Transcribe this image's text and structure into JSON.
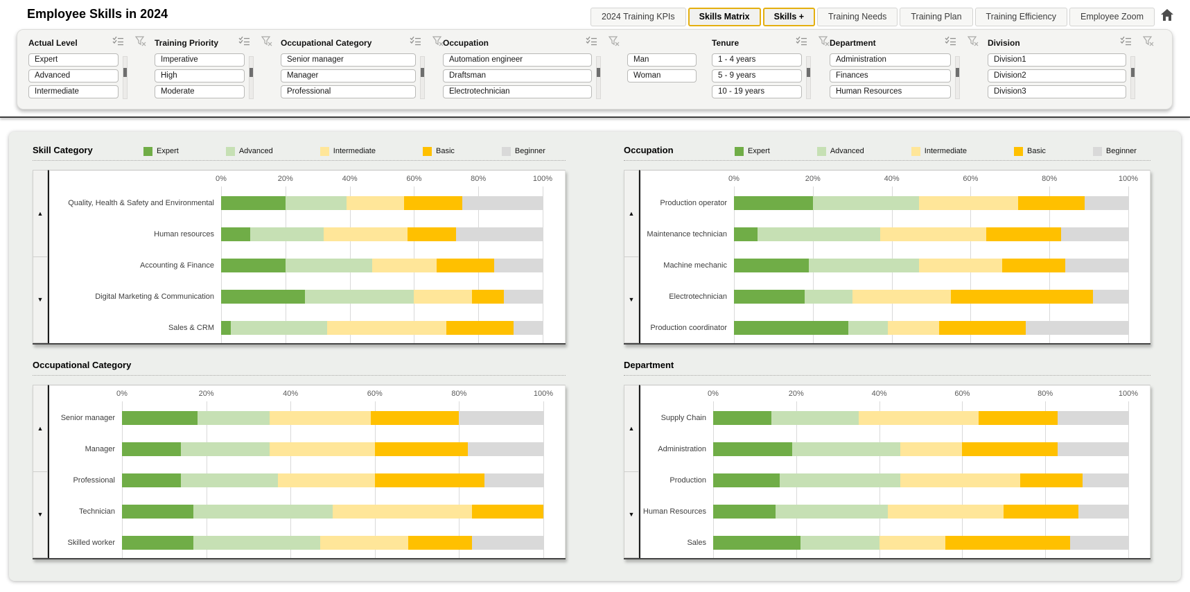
{
  "header": {
    "title": "Employee Skills in 2024",
    "tabs": [
      {
        "label": "2024 Training KPIs",
        "active": false
      },
      {
        "label": "Skills Matrix",
        "active": true
      },
      {
        "label": "Skills +",
        "active": true
      },
      {
        "label": "Training Needs",
        "active": false
      },
      {
        "label": "Training Plan",
        "active": false
      },
      {
        "label": "Training Efficiency",
        "active": false
      },
      {
        "label": "Employee Zoom",
        "active": false
      }
    ],
    "home_icon": "home-icon"
  },
  "filter_bar": {
    "slicers": [
      {
        "id": "actual-level",
        "title": "Actual Level",
        "items": [
          "Expert",
          "Advanced",
          "Intermediate"
        ]
      },
      {
        "id": "training-priority",
        "title": "Training Priority",
        "items": [
          "Imperative",
          "High",
          "Moderate"
        ]
      },
      {
        "id": "occupational-category",
        "title": "Occupational Category",
        "items": [
          "Senior manager",
          "Manager",
          "Professional"
        ]
      },
      {
        "id": "occupation",
        "title": "Occupation",
        "items": [
          "Automation engineer",
          "Draftsman",
          "Electrotechnician"
        ]
      },
      {
        "id": "gender",
        "title": "",
        "items": [
          "Man",
          "Woman"
        ]
      },
      {
        "id": "tenure",
        "title": "Tenure",
        "items": [
          "1 - 4 years",
          "5 - 9 years",
          "10 - 19 years"
        ]
      },
      {
        "id": "department",
        "title": "Department",
        "items": [
          "Administration",
          "Finances",
          "Human Resources"
        ]
      },
      {
        "id": "division",
        "title": "Division",
        "items": [
          "Division1",
          "Division2",
          "Division3"
        ]
      }
    ],
    "icons": {
      "multi_select": "multi-select-icon",
      "clear_filter": "clear-filter-icon"
    }
  },
  "legend": {
    "labels": [
      "Expert",
      "Advanced",
      "Intermediate",
      "Basic",
      "Beginner"
    ],
    "colors": [
      "#70AD47",
      "#C6E0B4",
      "#FFE699",
      "#FFC000",
      "#D9D9D9"
    ]
  },
  "scroll_icons": {
    "up": "▲",
    "down": "▼"
  },
  "chart_data": [
    {
      "type": "bar",
      "subtype": "horizontal-stacked-100",
      "title": "Skill Category",
      "legend_shown": true,
      "x_ticks": [
        "0%",
        "20%",
        "40%",
        "60%",
        "80%",
        "100%"
      ],
      "xlim": [
        0,
        100
      ],
      "categories": [
        "Quality, Health & Safety and Environmental",
        "Human resources",
        "Accounting & Finance",
        "Digital Marketing & Communication",
        "Sales & CRM"
      ],
      "series": [
        {
          "name": "Expert",
          "color": "#70AD47",
          "values": [
            20,
            9,
            20,
            26,
            3
          ]
        },
        {
          "name": "Advanced",
          "color": "#C6E0B4",
          "values": [
            19,
            23,
            27,
            34,
            30
          ]
        },
        {
          "name": "Intermediate",
          "color": "#FFE699",
          "values": [
            18,
            26,
            20,
            18,
            37
          ]
        },
        {
          "name": "Basic",
          "color": "#FFC000",
          "values": [
            18,
            15,
            18,
            10,
            21
          ]
        },
        {
          "name": "Beginner",
          "color": "#D9D9D9",
          "values": [
            25,
            27,
            15,
            12,
            9
          ]
        }
      ]
    },
    {
      "type": "bar",
      "subtype": "horizontal-stacked-100",
      "title": "Occupation",
      "legend_shown": true,
      "x_ticks": [
        "0%",
        "20%",
        "40%",
        "60%",
        "80%",
        "100%"
      ],
      "xlim": [
        0,
        100
      ],
      "categories": [
        "Production operator",
        "Maintenance technician",
        "Machine mechanic",
        "Electrotechnician",
        "Production coordinator"
      ],
      "series": [
        {
          "name": "Expert",
          "color": "#70AD47",
          "values": [
            20,
            6,
            19,
            18,
            29
          ]
        },
        {
          "name": "Advanced",
          "color": "#C6E0B4",
          "values": [
            27,
            31,
            28,
            12,
            10
          ]
        },
        {
          "name": "Intermediate",
          "color": "#FFE699",
          "values": [
            25,
            27,
            21,
            25,
            13
          ]
        },
        {
          "name": "Basic",
          "color": "#FFC000",
          "values": [
            17,
            19,
            16,
            36,
            22
          ]
        },
        {
          "name": "Beginner",
          "color": "#D9D9D9",
          "values": [
            11,
            17,
            16,
            9,
            26
          ]
        }
      ]
    },
    {
      "type": "bar",
      "subtype": "horizontal-stacked-100",
      "title": "Occupational Category",
      "legend_shown": false,
      "x_ticks": [
        "0%",
        "20%",
        "40%",
        "60%",
        "80%",
        "100%"
      ],
      "xlim": [
        0,
        100
      ],
      "categories": [
        "Senior manager",
        "Manager",
        "Professional",
        "Technician",
        "Skilled worker"
      ],
      "series": [
        {
          "name": "Expert",
          "color": "#70AD47",
          "values": [
            18,
            14,
            14,
            17,
            17
          ]
        },
        {
          "name": "Advanced",
          "color": "#C6E0B4",
          "values": [
            17,
            21,
            23,
            33,
            30
          ]
        },
        {
          "name": "Intermediate",
          "color": "#FFE699",
          "values": [
            24,
            25,
            23,
            33,
            21
          ]
        },
        {
          "name": "Basic",
          "color": "#FFC000",
          "values": [
            21,
            22,
            26,
            17,
            15
          ]
        },
        {
          "name": "Beginner",
          "color": "#D9D9D9",
          "values": [
            20,
            18,
            14,
            0,
            17
          ]
        }
      ]
    },
    {
      "type": "bar",
      "subtype": "horizontal-stacked-100",
      "title": "Department",
      "legend_shown": false,
      "x_ticks": [
        "0%",
        "20%",
        "40%",
        "60%",
        "80%",
        "100%"
      ],
      "xlim": [
        0,
        100
      ],
      "categories": [
        "Supply Chain",
        "Administration",
        "Production",
        "Human Resources",
        "Sales"
      ],
      "series": [
        {
          "name": "Expert",
          "color": "#70AD47",
          "values": [
            14,
            19,
            16,
            15,
            21
          ]
        },
        {
          "name": "Advanced",
          "color": "#C6E0B4",
          "values": [
            21,
            26,
            29,
            27,
            19
          ]
        },
        {
          "name": "Intermediate",
          "color": "#FFE699",
          "values": [
            29,
            15,
            29,
            28,
            16
          ]
        },
        {
          "name": "Basic",
          "color": "#FFC000",
          "values": [
            19,
            23,
            15,
            18,
            30
          ]
        },
        {
          "name": "Beginner",
          "color": "#D9D9D9",
          "values": [
            17,
            17,
            11,
            12,
            14
          ]
        }
      ]
    }
  ]
}
